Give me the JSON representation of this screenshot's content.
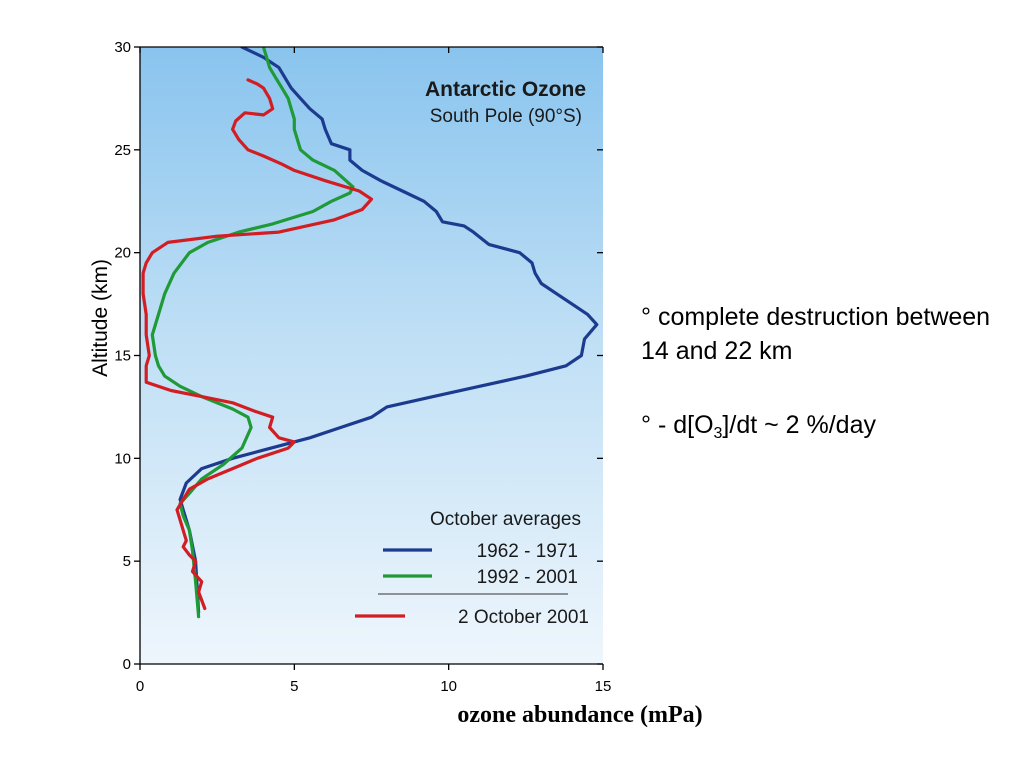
{
  "chart_data": {
    "type": "line",
    "title": "Antarctic Ozone",
    "subtitle": "South Pole (90°S)",
    "xlabel": "ozone abundance (mPa)",
    "ylabel": "Altitude (km)",
    "xlim": [
      0,
      15
    ],
    "ylim": [
      0,
      30
    ],
    "x_ticks": [
      "0",
      "5",
      "10",
      "15"
    ],
    "y_ticks": [
      "0",
      "5",
      "10",
      "15",
      "20",
      "25",
      "30"
    ],
    "legend_title": "October  averages",
    "legend_position": "bottom-right",
    "grid": false,
    "series": [
      {
        "name": "1962 - 1971",
        "color": "#1c3b8f",
        "points": [
          [
            1.9,
            2.5
          ],
          [
            1.8,
            5
          ],
          [
            1.6,
            6.5
          ],
          [
            1.4,
            7.5
          ],
          [
            1.3,
            8
          ],
          [
            1.5,
            8.8
          ],
          [
            2.0,
            9.5
          ],
          [
            3.0,
            10
          ],
          [
            4.0,
            10.4
          ],
          [
            5.5,
            11.0
          ],
          [
            6.5,
            11.5
          ],
          [
            7.5,
            12.0
          ],
          [
            8.0,
            12.5
          ],
          [
            9.5,
            13.0
          ],
          [
            11.0,
            13.5
          ],
          [
            12.5,
            14.0
          ],
          [
            13.8,
            14.5
          ],
          [
            14.3,
            15.0
          ],
          [
            14.4,
            15.8
          ],
          [
            14.8,
            16.5
          ],
          [
            14.5,
            17.0
          ],
          [
            14.0,
            17.5
          ],
          [
            13.5,
            18.0
          ],
          [
            13.0,
            18.5
          ],
          [
            12.8,
            19.0
          ],
          [
            12.7,
            19.5
          ],
          [
            12.3,
            20.0
          ],
          [
            11.3,
            20.4
          ],
          [
            10.8,
            21.0
          ],
          [
            10.5,
            21.3
          ],
          [
            9.8,
            21.5
          ],
          [
            9.6,
            22.0
          ],
          [
            9.2,
            22.5
          ],
          [
            8.5,
            23.0
          ],
          [
            7.8,
            23.5
          ],
          [
            7.2,
            24.0
          ],
          [
            6.8,
            24.5
          ],
          [
            6.8,
            25.0
          ],
          [
            6.2,
            25.3
          ],
          [
            6.0,
            26.0
          ],
          [
            5.9,
            26.5
          ],
          [
            5.5,
            27.0
          ],
          [
            5.2,
            27.5
          ],
          [
            4.9,
            28.0
          ],
          [
            4.7,
            28.5
          ],
          [
            4.5,
            29.0
          ],
          [
            4.0,
            29.5
          ],
          [
            3.3,
            30.0
          ]
        ]
      },
      {
        "name": "1992 - 2001",
        "color": "#1f9a37",
        "points": [
          [
            1.9,
            2.3
          ],
          [
            1.8,
            4
          ],
          [
            1.7,
            5.5
          ],
          [
            1.6,
            6.5
          ],
          [
            1.4,
            7.2
          ],
          [
            1.3,
            7.8
          ],
          [
            1.6,
            8.3
          ],
          [
            2.0,
            9.0
          ],
          [
            2.7,
            9.7
          ],
          [
            3.3,
            10.5
          ],
          [
            3.6,
            11.5
          ],
          [
            3.5,
            12.0
          ],
          [
            3.0,
            12.4
          ],
          [
            2.0,
            13.0
          ],
          [
            1.3,
            13.5
          ],
          [
            0.8,
            14.0
          ],
          [
            0.6,
            14.5
          ],
          [
            0.5,
            15.0
          ],
          [
            0.4,
            16.0
          ],
          [
            0.6,
            17.0
          ],
          [
            0.8,
            18.0
          ],
          [
            1.1,
            19.0
          ],
          [
            1.6,
            20.0
          ],
          [
            2.2,
            20.5
          ],
          [
            3.2,
            21.0
          ],
          [
            4.3,
            21.4
          ],
          [
            5.6,
            22.0
          ],
          [
            6.2,
            22.5
          ],
          [
            6.8,
            22.9
          ],
          [
            6.9,
            23.2
          ],
          [
            6.3,
            24.0
          ],
          [
            5.6,
            24.5
          ],
          [
            5.2,
            25.0
          ],
          [
            5.1,
            25.5
          ],
          [
            5.0,
            26.0
          ],
          [
            5.0,
            26.5
          ],
          [
            4.9,
            27.0
          ],
          [
            4.8,
            27.5
          ],
          [
            4.6,
            28.0
          ],
          [
            4.4,
            28.5
          ],
          [
            4.2,
            29.0
          ],
          [
            4.1,
            29.5
          ],
          [
            4.0,
            30.0
          ]
        ]
      },
      {
        "name": "2 October 2001",
        "color": "#d21e23",
        "points": [
          [
            2.1,
            2.7
          ],
          [
            1.9,
            3.5
          ],
          [
            2.0,
            4.0
          ],
          [
            1.7,
            4.5
          ],
          [
            1.8,
            5.0
          ],
          [
            1.6,
            5.3
          ],
          [
            1.4,
            5.7
          ],
          [
            1.5,
            6.0
          ],
          [
            1.4,
            6.5
          ],
          [
            1.3,
            7.0
          ],
          [
            1.2,
            7.5
          ],
          [
            1.4,
            8.0
          ],
          [
            1.6,
            8.5
          ],
          [
            2.2,
            9.0
          ],
          [
            3.0,
            9.5
          ],
          [
            3.8,
            10.0
          ],
          [
            4.8,
            10.5
          ],
          [
            5.0,
            10.8
          ],
          [
            4.5,
            11.0
          ],
          [
            4.2,
            11.5
          ],
          [
            4.3,
            12.0
          ],
          [
            3.7,
            12.3
          ],
          [
            3.0,
            12.7
          ],
          [
            2.0,
            13.0
          ],
          [
            1.0,
            13.3
          ],
          [
            0.2,
            13.7
          ],
          [
            0.2,
            14.5
          ],
          [
            0.3,
            15.0
          ],
          [
            0.2,
            16.0
          ],
          [
            0.2,
            17.0
          ],
          [
            0.1,
            18.0
          ],
          [
            0.1,
            19.0
          ],
          [
            0.2,
            19.5
          ],
          [
            0.4,
            20.0
          ],
          [
            0.9,
            20.5
          ],
          [
            2.5,
            20.8
          ],
          [
            4.5,
            21.0
          ],
          [
            6.3,
            21.6
          ],
          [
            7.2,
            22.1
          ],
          [
            7.5,
            22.6
          ],
          [
            7.1,
            23.0
          ],
          [
            6.0,
            23.5
          ],
          [
            5.0,
            24.0
          ],
          [
            4.6,
            24.3
          ],
          [
            4.0,
            24.7
          ],
          [
            3.5,
            25.0
          ],
          [
            3.2,
            25.5
          ],
          [
            3.0,
            26.0
          ],
          [
            3.1,
            26.4
          ],
          [
            3.4,
            26.8
          ],
          [
            4.0,
            26.7
          ],
          [
            4.3,
            27.0
          ],
          [
            4.2,
            27.5
          ],
          [
            4.0,
            28.0
          ],
          [
            3.8,
            28.2
          ],
          [
            3.5,
            28.4
          ]
        ]
      }
    ]
  },
  "notes": {
    "line1": "° complete destruction between 14 and 22 km",
    "line2_prefix": "° - d[O",
    "line2_sub": "3",
    "line2_suffix": "]/dt ~ 2 %/day"
  }
}
